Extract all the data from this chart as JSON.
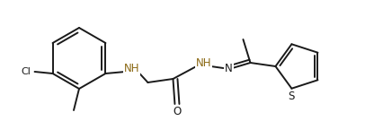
{
  "background_color": "#ffffff",
  "line_color": "#1a1a1a",
  "nh_color": "#8B6914",
  "n_color": "#1a1a1a",
  "o_color": "#1a1a1a",
  "s_color": "#1a1a1a",
  "line_width": 1.4,
  "figsize": [
    4.26,
    1.35
  ],
  "dpi": 100,
  "xlim": [
    0,
    426
  ],
  "ylim": [
    0,
    135
  ]
}
